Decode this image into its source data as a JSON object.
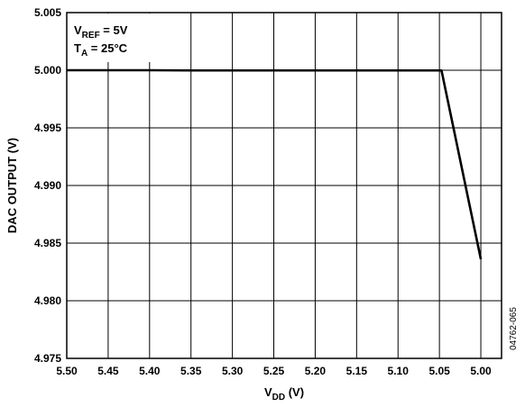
{
  "chart_data": {
    "type": "line",
    "title": "",
    "xlabel": {
      "main": "V",
      "sub": "DD",
      "tail": " (V)"
    },
    "ylabel": "DAC OUTPUT (V)",
    "xlim": [
      5.5,
      4.975
    ],
    "x_reversed": true,
    "ylim": [
      4.975,
      5.005
    ],
    "x_ticks": [
      "5.50",
      "5.45",
      "5.40",
      "5.35",
      "5.30",
      "5.25",
      "5.20",
      "5.15",
      "5.10",
      "5.05",
      "5.00"
    ],
    "y_ticks": [
      "5.005",
      "5.000",
      "4.995",
      "4.990",
      "4.985",
      "4.980",
      "4.975"
    ],
    "grid": true,
    "series": [
      {
        "x": [
          5.5,
          5.4,
          5.35,
          5.3,
          5.2,
          5.1,
          5.055,
          5.0475,
          5.0
        ],
        "y": [
          5.0,
          5.0,
          4.99998,
          4.99998,
          4.99998,
          4.99998,
          4.99998,
          4.99998,
          4.9836
        ]
      }
    ],
    "annotations": [
      {
        "main": "V",
        "sub": "REF",
        "tail": " = 5V"
      },
      {
        "main": "T",
        "sub": "A",
        "tail": " = 25°C"
      }
    ],
    "figure_id": "04762-065"
  }
}
